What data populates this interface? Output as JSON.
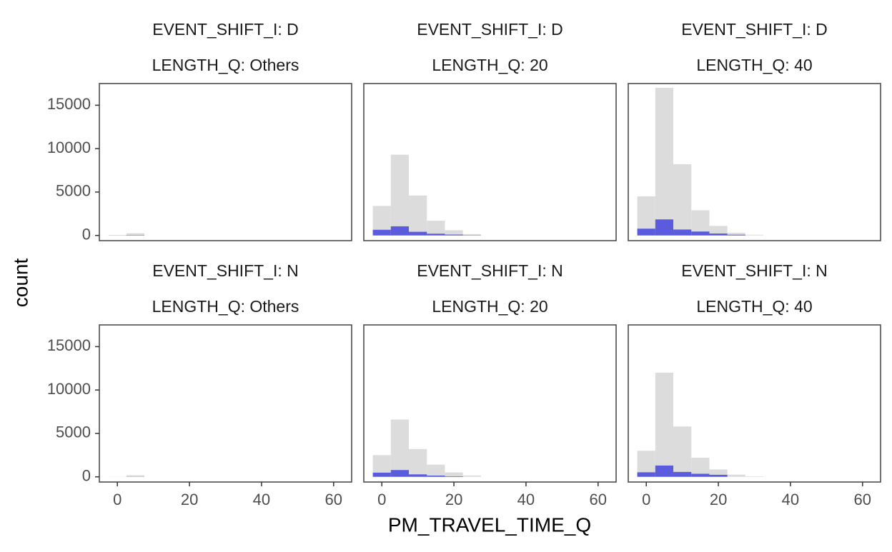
{
  "chart_data": {
    "type": "bar",
    "chart_kind": "faceted histogram",
    "xlabel": "PM_TRAVEL_TIME_Q",
    "ylabel": "count",
    "xlim": [
      -5,
      65
    ],
    "ylim": [
      -600,
      17500
    ],
    "x_ticks": [
      0,
      20,
      40,
      60
    ],
    "x_tick_labels": [
      "0",
      "20",
      "40",
      "60"
    ],
    "y_ticks": [
      0,
      5000,
      10000,
      15000
    ],
    "y_tick_labels": [
      "0",
      "5000",
      "10000",
      "15000"
    ],
    "bin_width": 5,
    "bin_starts": [
      -2.5,
      2.5,
      7.5,
      12.5,
      17.5,
      22.5,
      27.5
    ],
    "grid": false,
    "legend": "none",
    "colors": {
      "total": "#dcdcdc",
      "highlight": "#5b5bdd",
      "panel_border": "#4d4d4d"
    },
    "facet_rows": [
      "EVENT_SHIFT_I: D",
      "EVENT_SHIFT_I: N"
    ],
    "facet_cols": [
      "LENGTH_Q: Others",
      "LENGTH_Q: 20",
      "LENGTH_Q: 40"
    ],
    "panels": [
      {
        "strip": [
          "EVENT_SHIFT_I: D",
          "LENGTH_Q: Others"
        ],
        "series": [
          {
            "role": "total",
            "values": [
              50,
              250,
              0,
              0,
              0,
              0,
              0
            ]
          },
          {
            "role": "highlight",
            "values": [
              10,
              40,
              0,
              0,
              0,
              0,
              0
            ]
          }
        ]
      },
      {
        "strip": [
          "EVENT_SHIFT_I: D",
          "LENGTH_Q: 20"
        ],
        "series": [
          {
            "role": "total",
            "values": [
              3400,
              9300,
              4600,
              1700,
              600,
              150,
              0
            ]
          },
          {
            "role": "highlight",
            "values": [
              650,
              1050,
              420,
              200,
              100,
              30,
              0
            ]
          }
        ]
      },
      {
        "strip": [
          "EVENT_SHIFT_I: D",
          "LENGTH_Q: 40"
        ],
        "series": [
          {
            "role": "total",
            "values": [
              4500,
              17000,
              8200,
              2900,
              1100,
              300,
              80
            ]
          },
          {
            "role": "highlight",
            "values": [
              780,
              1850,
              680,
              450,
              220,
              80,
              0
            ]
          }
        ]
      },
      {
        "strip": [
          "EVENT_SHIFT_I: N",
          "LENGTH_Q: Others"
        ],
        "series": [
          {
            "role": "total",
            "values": [
              20,
              180,
              0,
              0,
              0,
              0,
              0
            ]
          },
          {
            "role": "highlight",
            "values": [
              0,
              15,
              0,
              0,
              0,
              0,
              0
            ]
          }
        ]
      },
      {
        "strip": [
          "EVENT_SHIFT_I: N",
          "LENGTH_Q: 20"
        ],
        "series": [
          {
            "role": "total",
            "values": [
              2500,
              6600,
              3200,
              1400,
              500,
              150,
              0
            ]
          },
          {
            "role": "highlight",
            "values": [
              480,
              780,
              280,
              140,
              60,
              0,
              0
            ]
          }
        ]
      },
      {
        "strip": [
          "EVENT_SHIFT_I: N",
          "LENGTH_Q: 40"
        ],
        "series": [
          {
            "role": "total",
            "values": [
              3000,
              12000,
              5800,
              2200,
              850,
              250,
              60
            ]
          },
          {
            "role": "highlight",
            "values": [
              520,
              1300,
              560,
              350,
              230,
              0,
              0
            ]
          }
        ]
      }
    ]
  }
}
